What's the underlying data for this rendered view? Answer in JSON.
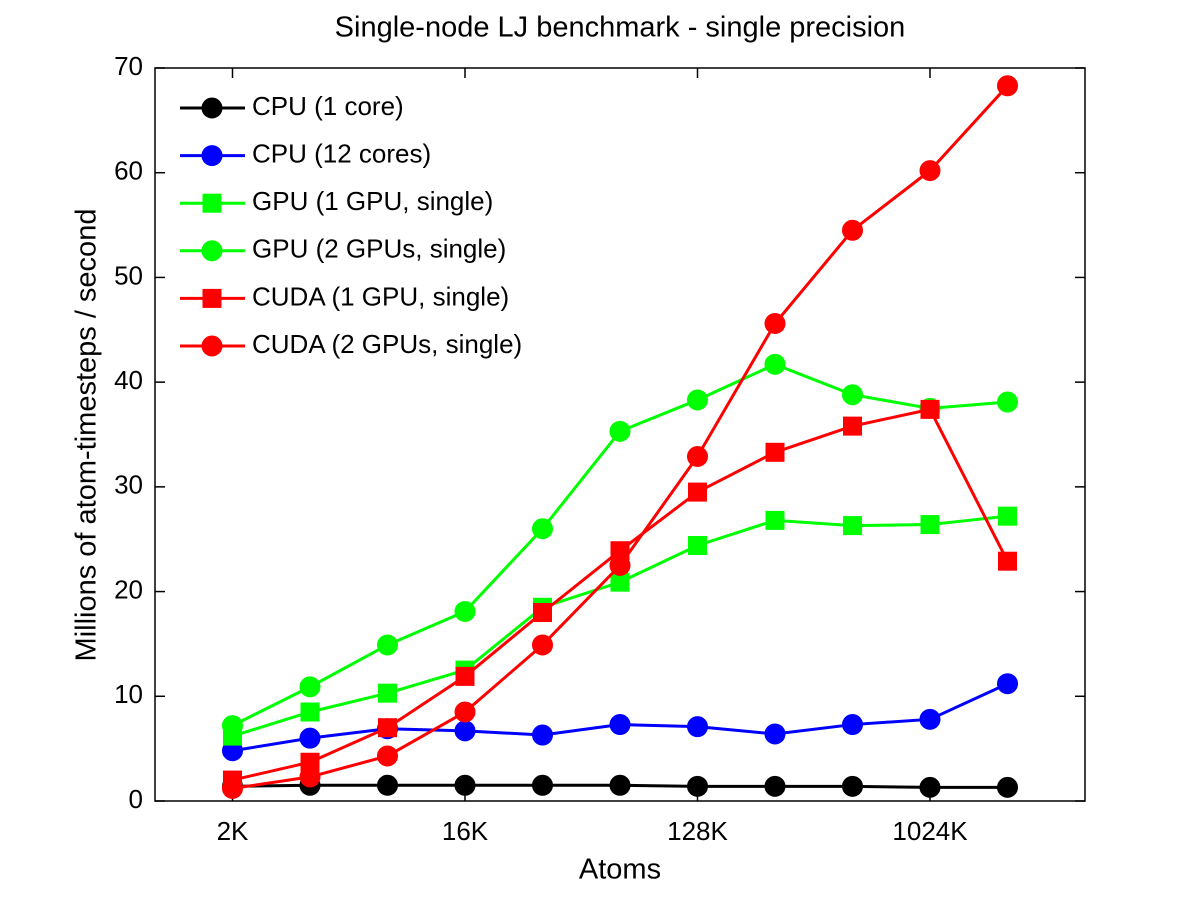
{
  "chart_data": {
    "type": "line",
    "title": "Single-node LJ benchmark - single precision",
    "xlabel": "Atoms",
    "ylabel": "Millions of atom-timesteps / second",
    "x": [
      2048,
      4096,
      8192,
      16384,
      32768,
      65536,
      131072,
      262144,
      524288,
      1048576,
      2097152
    ],
    "xscale": "log",
    "xlim": [
      1024,
      4194304
    ],
    "xticks": [
      {
        "value": 2048,
        "label": "2K"
      },
      {
        "value": 16384,
        "label": "16K"
      },
      {
        "value": 131072,
        "label": "128K"
      },
      {
        "value": 1048576,
        "label": "1024K"
      }
    ],
    "ylim": [
      0,
      70
    ],
    "yticks": [
      0,
      10,
      20,
      30,
      40,
      50,
      60,
      70
    ],
    "grid": false,
    "legend": "upper left",
    "series": [
      {
        "name": "CPU (1 core)",
        "color": "#000000",
        "marker": "circle",
        "values": [
          1.4,
          1.5,
          1.5,
          1.5,
          1.5,
          1.5,
          1.4,
          1.4,
          1.4,
          1.3,
          1.3
        ]
      },
      {
        "name": "CPU (12 cores)",
        "color": "#0000ff",
        "marker": "circle",
        "values": [
          4.8,
          6.0,
          6.9,
          6.7,
          6.3,
          7.3,
          7.1,
          6.4,
          7.3,
          7.8,
          11.2
        ]
      },
      {
        "name": "GPU (1 GPU, single)",
        "color": "#00ff00",
        "marker": "square",
        "values": [
          6.2,
          8.5,
          10.3,
          12.5,
          18.5,
          20.9,
          24.4,
          26.8,
          26.3,
          26.4,
          27.2
        ]
      },
      {
        "name": "GPU (2 GPUs, single)",
        "color": "#00ff00",
        "marker": "circle",
        "values": [
          7.2,
          10.9,
          14.9,
          18.1,
          26.0,
          35.3,
          38.3,
          41.7,
          38.8,
          37.5,
          38.1
        ]
      },
      {
        "name": "CUDA (1 GPU, single)",
        "color": "#ff0000",
        "marker": "square",
        "values": [
          2.0,
          3.7,
          7.0,
          11.9,
          18.0,
          23.9,
          29.5,
          33.3,
          35.8,
          37.4,
          22.9
        ]
      },
      {
        "name": "CUDA (2 GPUs, single)",
        "color": "#ff0000",
        "marker": "circle",
        "values": [
          1.2,
          2.3,
          4.3,
          8.5,
          14.9,
          22.5,
          32.9,
          45.6,
          54.5,
          60.2,
          68.3
        ]
      }
    ]
  }
}
